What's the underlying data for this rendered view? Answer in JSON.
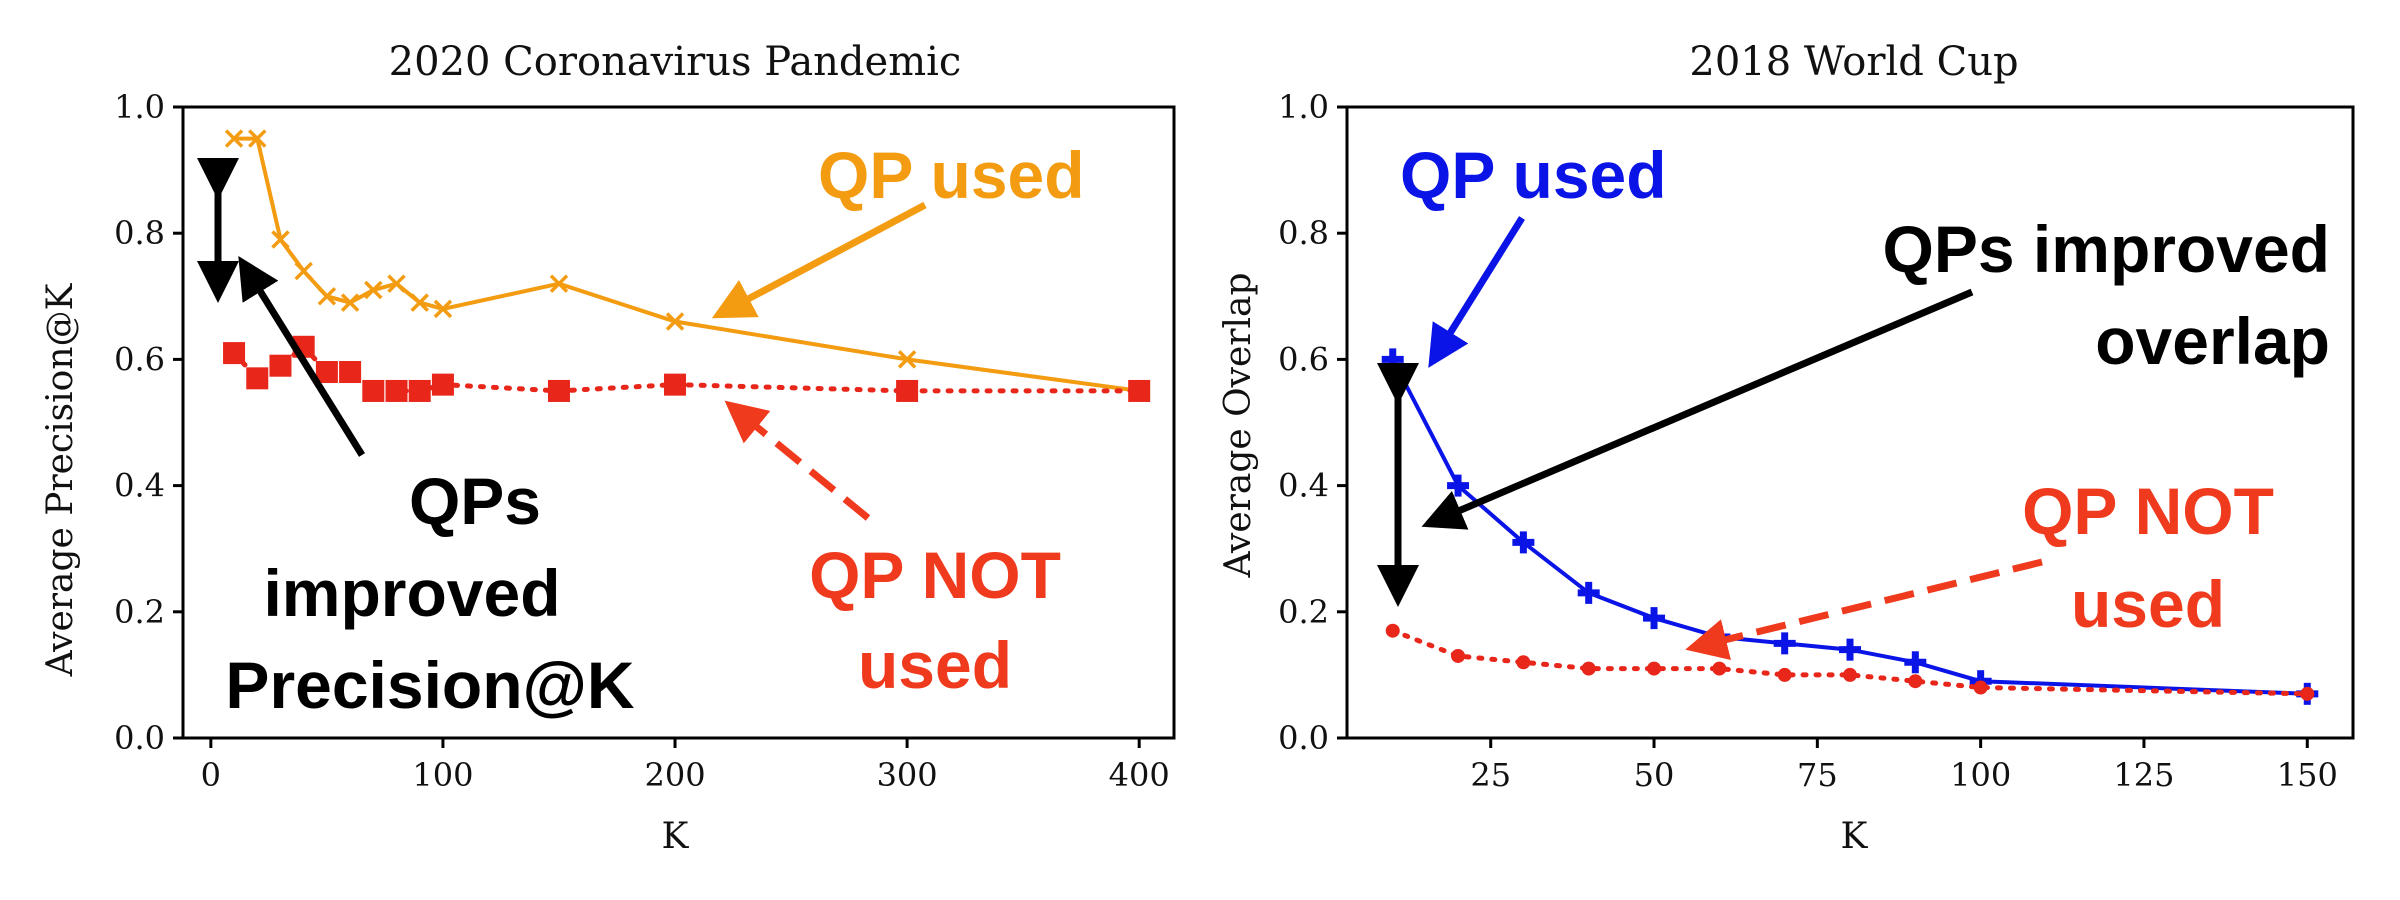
{
  "chart_data": [
    {
      "type": "line",
      "title": "2020 Coronavirus Pandemic",
      "xlabel": "K",
      "ylabel": "Average Precision@K",
      "xlim": [
        -12,
        415
      ],
      "ylim": [
        0.0,
        1.0
      ],
      "xticks": [
        "0",
        "100",
        "200",
        "300",
        "400"
      ],
      "yticks": [
        "0.0",
        "0.2",
        "0.4",
        "0.6",
        "0.8",
        "1.0"
      ],
      "grid": false,
      "series": [
        {
          "name": "QP used",
          "color": "#f39c12",
          "marker": "x",
          "linestyle": "solid",
          "x": [
            10,
            20,
            30,
            40,
            50,
            60,
            70,
            80,
            90,
            100,
            150,
            200,
            300,
            400
          ],
          "y": [
            0.95,
            0.95,
            0.79,
            0.74,
            0.7,
            0.69,
            0.71,
            0.72,
            0.69,
            0.68,
            0.72,
            0.66,
            0.6,
            0.55
          ]
        },
        {
          "name": "QP NOT used",
          "color": "#e8261a",
          "marker": "square",
          "linestyle": "dotted",
          "x": [
            10,
            20,
            30,
            40,
            50,
            60,
            70,
            80,
            90,
            100,
            150,
            200,
            300,
            400
          ],
          "y": [
            0.61,
            0.57,
            0.59,
            0.62,
            0.58,
            0.58,
            0.55,
            0.55,
            0.55,
            0.56,
            0.55,
            0.56,
            0.55,
            0.55
          ]
        }
      ],
      "annotations": [
        {
          "text": "QP used",
          "color": "#f39c12"
        },
        {
          "text": "QP NOT used",
          "color": "#e8261a"
        },
        {
          "text": "QPs improved Precision@K",
          "color": "#000000"
        }
      ]
    },
    {
      "type": "line",
      "title": "2018 World Cup",
      "xlabel": "K",
      "ylabel": "Average Overlap",
      "xlim": [
        3,
        157
      ],
      "ylim": [
        0.0,
        1.0
      ],
      "xticks": [
        "25",
        "50",
        "75",
        "100",
        "125",
        "150"
      ],
      "yticks": [
        "0.0",
        "0.2",
        "0.4",
        "0.6",
        "0.8",
        "1.0"
      ],
      "grid": false,
      "series": [
        {
          "name": "QP used",
          "color": "#0a14e6",
          "marker": "plus",
          "linestyle": "solid",
          "x": [
            10,
            20,
            30,
            40,
            50,
            60,
            70,
            80,
            90,
            100,
            150
          ],
          "y": [
            0.6,
            0.4,
            0.31,
            0.23,
            0.19,
            0.16,
            0.15,
            0.14,
            0.12,
            0.09,
            0.07
          ]
        },
        {
          "name": "QP NOT used",
          "color": "#e8261a",
          "marker": "dot",
          "linestyle": "dotted",
          "x": [
            10,
            20,
            30,
            40,
            50,
            60,
            70,
            80,
            90,
            100,
            150
          ],
          "y": [
            0.17,
            0.13,
            0.12,
            0.11,
            0.11,
            0.11,
            0.1,
            0.1,
            0.09,
            0.08,
            0.07
          ]
        }
      ],
      "annotations": [
        {
          "text": "QP used",
          "color": "#0a14e6"
        },
        {
          "text": "QPs improved overlap",
          "color": "#000000"
        },
        {
          "text": "QP NOT used",
          "color": "#e8261a"
        }
      ]
    }
  ],
  "labels": {
    "left_qp_used": "QP used",
    "left_qps_line1": "QPs",
    "left_qps_line2": "improved",
    "left_qps_line3": "Precision@K",
    "left_qp_not_line1": "QP NOT",
    "left_qp_not_line2": "used",
    "right_qp_used": "QP used",
    "right_qps_line1": "QPs improved",
    "right_qps_line2": "overlap",
    "right_qp_not_line1": "QP NOT",
    "right_qp_not_line2": "used"
  }
}
